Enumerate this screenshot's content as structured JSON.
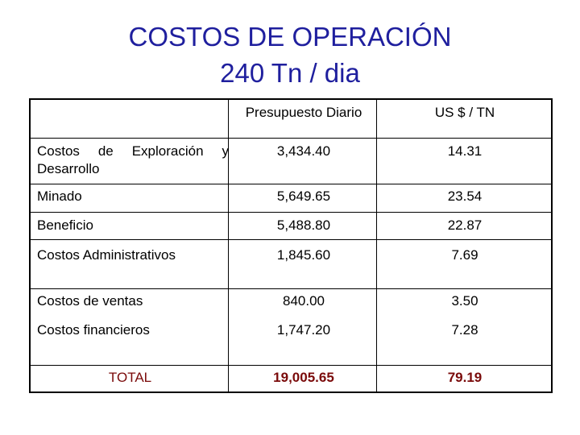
{
  "title": {
    "line1": "COSTOS DE OPERACIÓN",
    "line2": "240 Tn / dia"
  },
  "table": {
    "headers": [
      "",
      "Presupuesto Diario",
      "US $ / TN"
    ],
    "rows": [
      {
        "label": "Costos de Exploración y Desarrollo",
        "presupuesto": "3,434.40",
        "us_tn": "14.31"
      },
      {
        "label": "Minado",
        "presupuesto": "5,649.65",
        "us_tn": "23.54"
      },
      {
        "label": "Beneficio",
        "presupuesto": "5,488.80",
        "us_tn": "22.87"
      },
      {
        "label": "Costos Administrativos",
        "presupuesto": "1,845.60",
        "us_tn": "7.69"
      },
      {
        "label": "Costos de ventas",
        "presupuesto": "840.00",
        "us_tn": "3.50"
      },
      {
        "label": "Costos financieros",
        "presupuesto": "1,747.20",
        "us_tn": "7.28"
      }
    ],
    "total": {
      "label": "TOTAL",
      "presupuesto": "19,005.65",
      "us_tn": "79.19"
    }
  },
  "colors": {
    "title": "#1f1f9e",
    "total": "#7a0a0a"
  }
}
